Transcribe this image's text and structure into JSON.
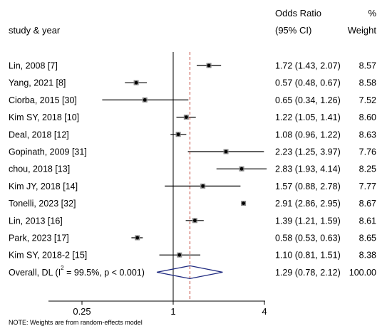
{
  "header": {
    "study_label": "study & year",
    "effect_label": "Odds Ratio",
    "ci_label": "(95% CI)",
    "pct_label": "%",
    "weight_label": "Weight"
  },
  "footnote": "NOTE: Weights are from random-effects model",
  "chart_data": {
    "type": "forest",
    "x_scale": "log",
    "null_value": 1,
    "xticks": [
      {
        "value": 0.25,
        "label": "0.25"
      },
      {
        "value": 1,
        "label": "1"
      },
      {
        "value": 4,
        "label": "4"
      }
    ],
    "colors": {
      "marker": "#000000",
      "pooled_diamond": "#1f2a80",
      "pooled_line": "#c0392b",
      "axis": "#000000"
    },
    "studies": [
      {
        "label": "Lin, 2008 [7]",
        "or": 1.72,
        "lo": 1.43,
        "hi": 2.07,
        "ci_text": "1.72 (1.43, 2.07)",
        "weight": "8.57"
      },
      {
        "label": "Yang, 2021 [8]",
        "or": 0.57,
        "lo": 0.48,
        "hi": 0.67,
        "ci_text": "0.57 (0.48, 0.67)",
        "weight": "8.58"
      },
      {
        "label": "Ciorba, 2015 [30]",
        "or": 0.65,
        "lo": 0.34,
        "hi": 1.26,
        "ci_text": "0.65 (0.34, 1.26)",
        "weight": "7.52"
      },
      {
        "label": "Kim SY, 2018 [10]",
        "or": 1.22,
        "lo": 1.05,
        "hi": 1.41,
        "ci_text": "1.22 (1.05, 1.41)",
        "weight": "8.60"
      },
      {
        "label": "Deal, 2018 [12]",
        "or": 1.08,
        "lo": 0.96,
        "hi": 1.22,
        "ci_text": "1.08 (0.96, 1.22)",
        "weight": "8.63"
      },
      {
        "label": "Gopinath, 2009 [31]",
        "or": 2.23,
        "lo": 1.25,
        "hi": 3.97,
        "ci_text": "2.23 (1.25, 3.97)",
        "weight": "7.76"
      },
      {
        "label": "chou, 2018 [13]",
        "or": 2.83,
        "lo": 1.93,
        "hi": 4.14,
        "ci_text": "2.83 (1.93, 4.14)",
        "weight": "8.25"
      },
      {
        "label": "Kim JY, 2018 [14]",
        "or": 1.57,
        "lo": 0.88,
        "hi": 2.78,
        "ci_text": "1.57 (0.88, 2.78)",
        "weight": "7.77"
      },
      {
        "label": "Tonelli, 2023 [32]",
        "or": 2.91,
        "lo": 2.86,
        "hi": 2.95,
        "ci_text": "2.91 (2.86, 2.95)",
        "weight": "8.67"
      },
      {
        "label": "Lin, 2013 [16]",
        "or": 1.39,
        "lo": 1.21,
        "hi": 1.59,
        "ci_text": "1.39 (1.21, 1.59)",
        "weight": "8.61"
      },
      {
        "label": "Park, 2023 [17]",
        "or": 0.58,
        "lo": 0.53,
        "hi": 0.63,
        "ci_text": "0.58 (0.53, 0.63)",
        "weight": "8.65"
      },
      {
        "label": "Kim SY, 2018-2 [15]",
        "or": 1.1,
        "lo": 0.81,
        "hi": 1.51,
        "ci_text": "1.10 (0.81, 1.51)",
        "weight": "8.38"
      }
    ],
    "overall": {
      "label_prefix": "Overall, DL (I",
      "label_sup": "2",
      "label_suffix": " = 99.5%, p < 0.001)",
      "or": 1.29,
      "lo": 0.78,
      "hi": 2.12,
      "ci_text": "1.29 (0.78, 2.12)",
      "weight": "100.00"
    }
  }
}
